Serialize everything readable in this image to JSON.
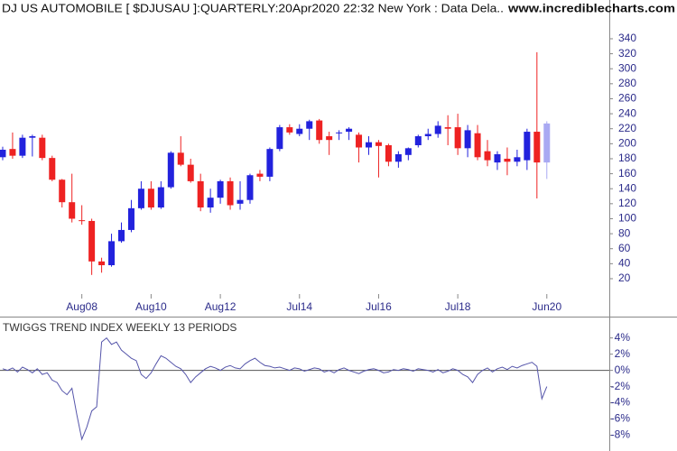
{
  "chart_data": [
    {
      "type": "candlestick",
      "title": "DJ US AUTOMOBILE [ $DJUSAU ]:QUARTERLY:20Apr2020 22:32 New York : Data Dela..",
      "source": "www.incrediblecharts.com",
      "categories": [
        null,
        null,
        null,
        null,
        null,
        null,
        null,
        null,
        "Aug08",
        null,
        null,
        null,
        null,
        null,
        null,
        "Aug10",
        null,
        null,
        null,
        null,
        null,
        null,
        "Aug12",
        null,
        null,
        null,
        null,
        null,
        null,
        null,
        "Jul14",
        null,
        null,
        null,
        null,
        null,
        null,
        null,
        "Jul16",
        null,
        null,
        null,
        null,
        null,
        null,
        null,
        "Jul18",
        null,
        null,
        null,
        null,
        null,
        null,
        null,
        null,
        "Jun20"
      ],
      "open": [
        182,
        193,
        184,
        208,
        208,
        181,
        152,
        122,
        98,
        97,
        43,
        38,
        70,
        85,
        114,
        140,
        115,
        142,
        188,
        172,
        150,
        115,
        128,
        150,
        120,
        125,
        160,
        156,
        193,
        222,
        213,
        220,
        231,
        210,
        214,
        216,
        212,
        195,
        202,
        198,
        176,
        185,
        198,
        210,
        213,
        222,
        222,
        194,
        214,
        190,
        175,
        180,
        176,
        178,
        216,
        175
      ],
      "high": [
        196,
        215,
        212,
        212,
        212,
        184,
        153,
        160,
        118,
        100,
        48,
        80,
        95,
        125,
        150,
        150,
        150,
        190,
        210,
        180,
        160,
        140,
        152,
        155,
        150,
        160,
        165,
        195,
        225,
        226,
        226,
        232,
        233,
        216,
        218,
        222,
        215,
        210,
        205,
        200,
        190,
        195,
        212,
        220,
        230,
        238,
        240,
        225,
        225,
        205,
        190,
        195,
        192,
        220,
        322,
        230
      ],
      "low": [
        178,
        180,
        181,
        183,
        178,
        150,
        115,
        95,
        92,
        25,
        28,
        36,
        68,
        82,
        112,
        112,
        113,
        140,
        170,
        148,
        110,
        108,
        120,
        112,
        112,
        120,
        150,
        150,
        190,
        212,
        210,
        205,
        200,
        185,
        205,
        205,
        175,
        185,
        155,
        170,
        168,
        178,
        195,
        205,
        208,
        198,
        185,
        182,
        178,
        170,
        165,
        158,
        170,
        165,
        127,
        153
      ],
      "close": [
        192,
        184,
        208,
        210,
        181,
        152,
        122,
        100,
        97,
        43,
        38,
        70,
        85,
        114,
        140,
        115,
        142,
        188,
        172,
        150,
        115,
        128,
        150,
        118,
        125,
        158,
        156,
        193,
        222,
        215,
        220,
        230,
        205,
        205,
        215,
        220,
        195,
        202,
        197,
        176,
        186,
        194,
        210,
        213,
        224,
        220,
        194,
        218,
        182,
        178,
        186,
        176,
        182,
        216,
        175,
        227
      ],
      "up_color": "#2222dd",
      "down_color": "#ee2222",
      "last_color": "#a9a9f2",
      "ylim": [
        0,
        358
      ],
      "yticks": [
        20,
        40,
        60,
        80,
        100,
        120,
        140,
        160,
        180,
        200,
        220,
        240,
        260,
        280,
        300,
        320,
        340
      ]
    },
    {
      "type": "line",
      "title": "TWIGGS TREND INDEX WEEKLY 13 PERIODS",
      "values": [
        0.2,
        0,
        0.3,
        -0.2,
        0.4,
        0.1,
        -0.3,
        0.2,
        -0.5,
        -0.3,
        -1.2,
        -1.5,
        -2.5,
        -3,
        -2.2,
        -5.5,
        -8.5,
        -7,
        -5,
        -4.5,
        3.5,
        4,
        3.2,
        3.5,
        2.5,
        2,
        1.5,
        1.2,
        -0.5,
        -1,
        -0.3,
        0.8,
        1.8,
        1.5,
        1,
        0.5,
        0.2,
        -0.5,
        -1.5,
        -0.8,
        -0.3,
        0.2,
        0.5,
        0.3,
        0,
        0.4,
        0.6,
        0.3,
        0.2,
        0.8,
        1.2,
        1.5,
        1,
        0.6,
        0.5,
        0.3,
        0.4,
        0.2,
        0,
        0.3,
        0.2,
        -0.1,
        0.1,
        0.3,
        0.2,
        -0.2,
        0,
        -0.3,
        0.1,
        0.3,
        0,
        -0.2,
        -0.4,
        -0.1,
        0.1,
        0.2,
        0,
        -0.3,
        -0.2,
        0.1,
        0,
        0.2,
        0.1,
        -0.1,
        0.2,
        0.1,
        0,
        -0.2,
        0.1,
        -0.3,
        -0.1,
        0.2,
        0,
        -0.5,
        -0.8,
        -1.5,
        -0.5,
        0,
        0.3,
        -0.2,
        0.2,
        0.4,
        0.1,
        0.5,
        0.3,
        0.6,
        0.8,
        1,
        0.5,
        -3.5,
        -2
      ],
      "color": "#5555aa",
      "zero_line": true,
      "ylim": [
        -9.5,
        6.3
      ],
      "yticks": [
        {
          "value": 4,
          "label": "4%"
        },
        {
          "value": 2,
          "label": "2%"
        },
        {
          "value": 0,
          "label": "0%"
        },
        {
          "value": -2,
          "label": "-2%"
        },
        {
          "value": -4,
          "label": "-4%"
        },
        {
          "value": -6,
          "label": "-6%"
        },
        {
          "value": -8,
          "label": "-8%"
        }
      ]
    }
  ]
}
